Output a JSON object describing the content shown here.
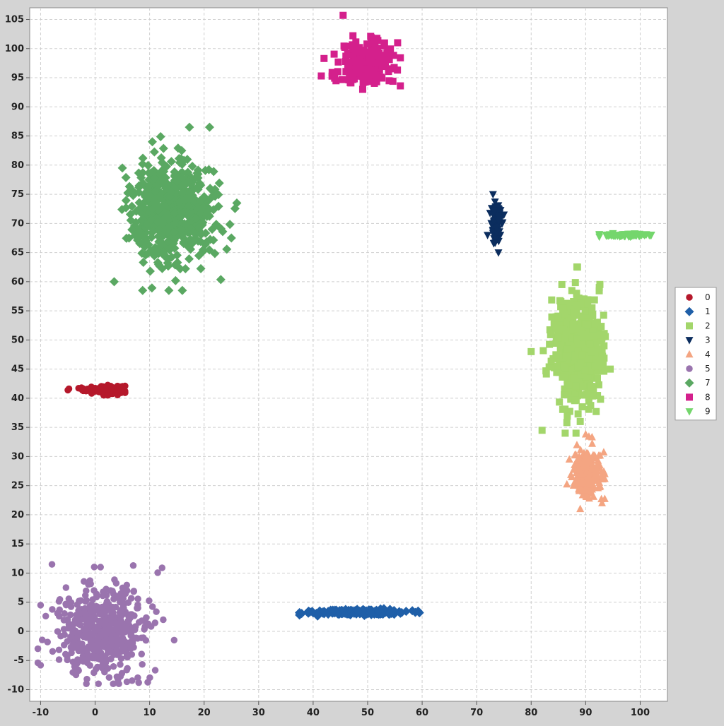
{
  "chart_data": {
    "type": "scatter",
    "title": "",
    "xlabel": "",
    "ylabel": "",
    "xlim": [
      -12,
      105
    ],
    "ylim": [
      -12,
      107
    ],
    "grid": true,
    "legend_position": "right",
    "x_ticks": [
      -10,
      0,
      10,
      20,
      30,
      40,
      50,
      60,
      70,
      80,
      90,
      100
    ],
    "y_ticks": [
      -10,
      -5,
      0,
      5,
      10,
      15,
      20,
      25,
      30,
      35,
      40,
      45,
      50,
      55,
      60,
      65,
      70,
      75,
      80,
      85,
      90,
      95,
      100,
      105
    ],
    "series": [
      {
        "name": "0",
        "marker": "circle",
        "color": "#b5182b",
        "cluster": {
          "x_center": 1.5,
          "y_center": 41.5,
          "x_range": [
            -5,
            5.5
          ],
          "y_range": [
            40.5,
            42.5
          ],
          "count": 140,
          "spread": [
            1.8,
            0.35
          ]
        },
        "points": [
          [
            -5.0,
            41.4
          ],
          [
            5.5,
            42.1
          ],
          [
            -2.5,
            41.8
          ],
          [
            0.5,
            41.2
          ],
          [
            3.0,
            41.9
          ],
          [
            4.8,
            41.3
          ]
        ]
      },
      {
        "name": "1",
        "marker": "diamond",
        "color": "#1f5fa8",
        "cluster": {
          "x_center": 48,
          "y_center": 3.3,
          "x_range": [
            37.5,
            59.5
          ],
          "y_range": [
            2.6,
            4.0
          ],
          "count": 260,
          "spread": [
            4.0,
            0.22
          ]
        },
        "points": [
          [
            37.5,
            3.2
          ],
          [
            59.5,
            3.2
          ],
          [
            42.0,
            3.4
          ],
          [
            52.0,
            3.5
          ],
          [
            56.0,
            3.1
          ]
        ]
      },
      {
        "name": "2",
        "marker": "square",
        "color": "#a3d66b",
        "cluster": {
          "x_center": 88.5,
          "y_center": 48,
          "x_range": [
            80,
            94.5
          ],
          "y_range": [
            34,
            63
          ],
          "count": 600,
          "spread": [
            2.2,
            4.5
          ]
        },
        "points": [
          [
            88.5,
            62.5
          ],
          [
            82.0,
            34.5
          ],
          [
            80.0,
            48.0
          ],
          [
            94.5,
            45.0
          ],
          [
            92.5,
            59.0
          ],
          [
            89.0,
            36.0
          ]
        ]
      },
      {
        "name": "3",
        "marker": "triangle-down",
        "color": "#0b2d5e",
        "cluster": {
          "x_center": 73.5,
          "y_center": 70,
          "x_range": [
            72,
            75
          ],
          "y_range": [
            65,
            75
          ],
          "count": 100,
          "spread": [
            0.45,
            1.8
          ]
        },
        "points": [
          [
            73.0,
            75.0
          ],
          [
            74.0,
            65.0
          ],
          [
            75.0,
            71.5
          ],
          [
            72.0,
            68.0
          ]
        ]
      },
      {
        "name": "4",
        "marker": "triangle-up",
        "color": "#f4a582",
        "cluster": {
          "x_center": 90,
          "y_center": 27,
          "x_range": [
            86.5,
            93.5
          ],
          "y_range": [
            21,
            34
          ],
          "count": 300,
          "spread": [
            1.2,
            2.0
          ]
        },
        "points": [
          [
            90.0,
            33.8
          ],
          [
            89.0,
            21.0
          ],
          [
            93.0,
            22.0
          ],
          [
            87.0,
            29.5
          ],
          [
            93.5,
            27.0
          ]
        ]
      },
      {
        "name": "5",
        "marker": "circle",
        "color": "#9a74ae",
        "cluster": {
          "x_center": 1,
          "y_center": 0.5,
          "x_range": [
            -10.5,
            14.5
          ],
          "y_range": [
            -9,
            11.5
          ],
          "count": 500,
          "spread": [
            4.0,
            3.8
          ]
        },
        "points": [
          [
            -10.0,
            -5.8
          ],
          [
            14.5,
            -1.5
          ],
          [
            7.0,
            11.3
          ],
          [
            8.0,
            -8.8
          ],
          [
            -1.5,
            -8.2
          ],
          [
            -10.0,
            4.5
          ],
          [
            12.5,
            2.0
          ]
        ]
      },
      {
        "name": "7",
        "marker": "diamond",
        "color": "#5aa862",
        "cluster": {
          "x_center": 14,
          "y_center": 72,
          "x_range": [
            3.5,
            26
          ],
          "y_range": [
            58.5,
            86.5
          ],
          "count": 600,
          "spread": [
            3.6,
            4.2
          ]
        },
        "points": [
          [
            3.5,
            60.0
          ],
          [
            21.0,
            86.5
          ],
          [
            26.0,
            73.5
          ],
          [
            16.0,
            58.5
          ],
          [
            5.0,
            79.5
          ],
          [
            25.0,
            67.5
          ],
          [
            10.5,
            84.0
          ]
        ]
      },
      {
        "name": "8",
        "marker": "square",
        "color": "#d4208c",
        "cluster": {
          "x_center": 50,
          "y_center": 97.5,
          "x_range": [
            41.5,
            56
          ],
          "y_range": [
            93,
            106
          ],
          "count": 200,
          "spread": [
            2.4,
            1.9
          ]
        },
        "points": [
          [
            45.5,
            105.7
          ],
          [
            41.5,
            95.3
          ],
          [
            56.0,
            93.6
          ],
          [
            55.5,
            101.0
          ],
          [
            42.0,
            98.3
          ]
        ]
      },
      {
        "name": "9",
        "marker": "triangle-down",
        "color": "#74d66c",
        "cluster": {
          "x_center": 97.5,
          "y_center": 68.0,
          "x_range": [
            92.5,
            102
          ],
          "y_range": [
            67.7,
            68.4
          ],
          "count": 90,
          "spread": [
            2.0,
            0.15
          ]
        },
        "points": [
          [
            92.5,
            68.0
          ],
          [
            102.0,
            68.0
          ],
          [
            95.0,
            68.3
          ],
          [
            100.0,
            67.9
          ]
        ]
      }
    ]
  },
  "colors": {
    "background": "#d4d4d4",
    "plot_background": "#ffffff",
    "grid": "#cfcfcf"
  }
}
